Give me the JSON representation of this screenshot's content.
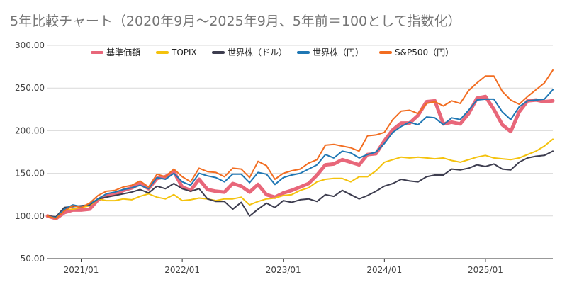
{
  "chart_data": {
    "type": "line",
    "title": "5年比較チャート（2020年9月〜2025年9月、5年前＝100として指数化）",
    "xlabel": "",
    "ylabel": "",
    "ylim": [
      50,
      300
    ],
    "yticks": [
      "50.00",
      "100.00",
      "150.00",
      "200.00",
      "250.00",
      "300.00"
    ],
    "xticks": [
      "2021/01",
      "2022/01",
      "2023/01",
      "2024/01",
      "2025/01"
    ],
    "x": [
      "2020/09",
      "2020/10",
      "2020/11",
      "2020/12",
      "2021/01",
      "2021/02",
      "2021/03",
      "2021/04",
      "2021/05",
      "2021/06",
      "2021/07",
      "2021/08",
      "2021/09",
      "2021/10",
      "2021/11",
      "2021/12",
      "2022/01",
      "2022/02",
      "2022/03",
      "2022/04",
      "2022/05",
      "2022/06",
      "2022/07",
      "2022/08",
      "2022/09",
      "2022/10",
      "2022/11",
      "2022/12",
      "2023/01",
      "2023/02",
      "2023/03",
      "2023/04",
      "2023/05",
      "2023/06",
      "2023/07",
      "2023/08",
      "2023/09",
      "2023/10",
      "2023/11",
      "2023/12",
      "2024/01",
      "2024/02",
      "2024/03",
      "2024/04",
      "2024/05",
      "2024/06",
      "2024/07",
      "2024/08",
      "2024/09",
      "2024/10",
      "2024/11",
      "2024/12",
      "2025/01",
      "2025/02",
      "2025/03",
      "2025/04",
      "2025/05",
      "2025/06",
      "2025/07",
      "2025/08",
      "2025/09"
    ],
    "grid": true,
    "legend_position": "top",
    "series": [
      {
        "name": "基準価額",
        "color": "#e8677a",
        "width": 5,
        "values": [
          100,
          97,
          104,
          107,
          107,
          108,
          119,
          124,
          125,
          130,
          133,
          138,
          132,
          144,
          146,
          152,
          134,
          130,
          143,
          131,
          129,
          128,
          138,
          135,
          128,
          137,
          125,
          122,
          127,
          130,
          134,
          138,
          148,
          160,
          161,
          166,
          163,
          160,
          172,
          173,
          188,
          201,
          209,
          209,
          218,
          234,
          235,
          208,
          210,
          208,
          220,
          238,
          240,
          225,
          207,
          199,
          222,
          235,
          236,
          234,
          235
        ]
      },
      {
        "name": "TOPIX",
        "color": "#f4c20d",
        "width": 2,
        "values": [
          100,
          98,
          107,
          108,
          110,
          112,
          120,
          118,
          118,
          120,
          119,
          123,
          126,
          122,
          120,
          125,
          118,
          119,
          121,
          120,
          118,
          120,
          120,
          122,
          113,
          117,
          120,
          121,
          124,
          125,
          130,
          133,
          140,
          143,
          144,
          144,
          140,
          146,
          146,
          153,
          163,
          166,
          169,
          168,
          169,
          168,
          167,
          168,
          165,
          163,
          166,
          169,
          171,
          168,
          167,
          166,
          168,
          172,
          176,
          182,
          190
        ]
      },
      {
        "name": "世界株（ドル）",
        "color": "#3d3d4f",
        "width": 2,
        "values": [
          100,
          99,
          110,
          111,
          112,
          113,
          120,
          122,
          124,
          126,
          128,
          131,
          127,
          135,
          132,
          138,
          132,
          129,
          132,
          120,
          117,
          117,
          108,
          116,
          100,
          108,
          115,
          110,
          118,
          116,
          119,
          120,
          117,
          125,
          123,
          130,
          125,
          120,
          124,
          129,
          135,
          138,
          143,
          141,
          140,
          146,
          148,
          148,
          155,
          154,
          156,
          160,
          158,
          161,
          155,
          154,
          163,
          168,
          170,
          171,
          176
        ]
      },
      {
        "name": "世界株（円）",
        "color": "#1f77b4",
        "width": 2,
        "values": [
          100,
          98,
          108,
          113,
          111,
          114,
          120,
          126,
          128,
          131,
          133,
          136,
          132,
          145,
          143,
          150,
          140,
          136,
          150,
          147,
          145,
          140,
          149,
          149,
          139,
          151,
          149,
          137,
          145,
          148,
          150,
          155,
          160,
          172,
          168,
          176,
          174,
          168,
          172,
          175,
          185,
          198,
          205,
          210,
          207,
          216,
          215,
          207,
          215,
          213,
          224,
          236,
          237,
          237,
          222,
          213,
          228,
          235,
          236,
          237,
          248
        ]
      },
      {
        "name": "S&P500（円）",
        "color": "#f26d21",
        "width": 2,
        "values": [
          100,
          97,
          106,
          112,
          110,
          115,
          124,
          129,
          130,
          134,
          136,
          141,
          134,
          149,
          146,
          155,
          146,
          140,
          156,
          152,
          151,
          146,
          156,
          155,
          145,
          164,
          159,
          143,
          150,
          153,
          155,
          162,
          166,
          183,
          184,
          182,
          180,
          176,
          194,
          195,
          198,
          213,
          223,
          224,
          220,
          232,
          234,
          229,
          235,
          232,
          247,
          256,
          264,
          264,
          246,
          236,
          231,
          240,
          248,
          256,
          271
        ]
      }
    ]
  }
}
